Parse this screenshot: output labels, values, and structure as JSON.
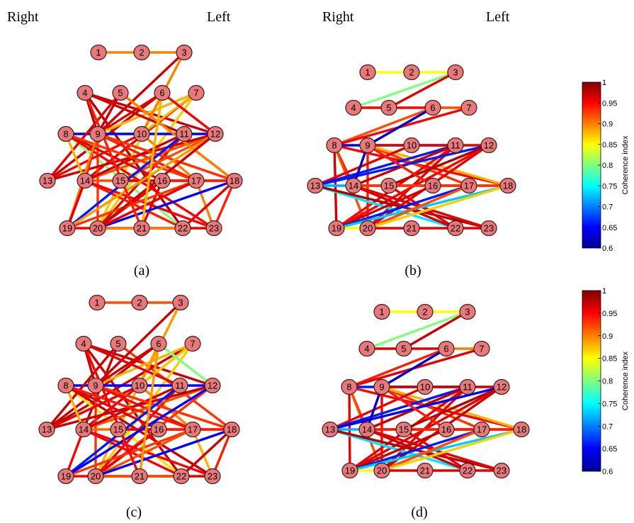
{
  "headers": {
    "left_panel": {
      "right": "Right",
      "left": "Left"
    },
    "right_panel": {
      "right": "Right",
      "left": "Left"
    }
  },
  "colorbar": {
    "label": "Coherence index",
    "min": 0.6,
    "max": 1,
    "ticks": [
      "1",
      "0.95",
      "0.9",
      "0.85",
      "0.8",
      "0.75",
      "0.7",
      "0.65",
      "0.6"
    ],
    "colormap": "jet"
  },
  "node_labels": [
    "1",
    "2",
    "3",
    "4",
    "5",
    "6",
    "7",
    "8",
    "9",
    "10",
    "11",
    "12",
    "13",
    "14",
    "15",
    "16",
    "17",
    "18",
    "19",
    "20",
    "21",
    "22",
    "23"
  ],
  "panels": [
    {
      "id": "a",
      "caption": "(a)",
      "edges": [
        [
          1,
          3,
          0.9
        ],
        [
          4,
          12,
          0.97
        ],
        [
          4,
          22,
          0.98
        ],
        [
          5,
          9,
          0.97
        ],
        [
          5,
          18,
          0.92
        ],
        [
          6,
          13,
          0.97
        ],
        [
          6,
          20,
          0.87
        ],
        [
          7,
          14,
          0.96
        ],
        [
          7,
          20,
          0.87
        ],
        [
          8,
          12,
          0.65
        ],
        [
          8,
          22,
          0.8
        ],
        [
          8,
          23,
          0.95
        ],
        [
          9,
          3,
          0.97
        ],
        [
          9,
          4,
          0.98
        ],
        [
          9,
          6,
          0.96
        ],
        [
          9,
          7,
          0.88
        ],
        [
          9,
          17,
          0.94
        ],
        [
          9,
          18,
          0.93
        ],
        [
          9,
          20,
          0.93
        ],
        [
          10,
          3,
          0.9
        ],
        [
          10,
          7,
          0.88
        ],
        [
          10,
          13,
          0.95
        ],
        [
          10,
          17,
          0.9
        ],
        [
          11,
          4,
          0.97
        ],
        [
          11,
          20,
          0.96
        ],
        [
          12,
          6,
          0.95
        ],
        [
          12,
          14,
          0.92
        ],
        [
          12,
          20,
          0.91
        ],
        [
          13,
          5,
          0.96
        ],
        [
          13,
          12,
          0.97
        ],
        [
          14,
          8,
          0.88
        ],
        [
          14,
          9,
          0.94
        ],
        [
          14,
          11,
          0.97
        ],
        [
          14,
          17,
          0.92
        ],
        [
          14,
          19,
          0.96
        ],
        [
          14,
          22,
          0.94
        ],
        [
          14,
          23,
          0.95
        ],
        [
          15,
          12,
          0.92
        ],
        [
          15,
          18,
          0.96
        ],
        [
          16,
          8,
          0.96
        ],
        [
          16,
          20,
          0.96
        ],
        [
          16,
          21,
          0.96
        ],
        [
          17,
          8,
          0.93
        ],
        [
          17,
          19,
          0.93
        ],
        [
          17,
          23,
          0.9
        ],
        [
          17,
          20,
          0.92
        ],
        [
          18,
          5,
          0.9
        ],
        [
          18,
          9,
          0.93
        ],
        [
          18,
          16,
          0.94
        ],
        [
          18,
          22,
          0.96
        ],
        [
          18,
          23,
          0.94
        ],
        [
          19,
          9,
          0.9
        ],
        [
          19,
          11,
          0.66
        ],
        [
          19,
          14,
          0.96
        ],
        [
          19,
          12,
          0.89
        ],
        [
          19,
          22,
          0.95
        ],
        [
          20,
          18,
          0.65
        ],
        [
          20,
          17,
          0.96
        ],
        [
          20,
          23,
          0.96
        ],
        [
          20,
          22,
          0.9
        ],
        [
          20,
          12,
          0.97
        ],
        [
          21,
          6,
          0.88
        ],
        [
          21,
          4,
          0.94
        ]
      ]
    },
    {
      "id": "b",
      "caption": "(b)",
      "edges": [
        [
          1,
          3,
          0.85
        ],
        [
          3,
          4,
          0.8
        ],
        [
          3,
          5,
          0.96
        ],
        [
          4,
          6,
          0.95
        ],
        [
          6,
          7,
          0.92
        ],
        [
          8,
          6,
          0.92
        ],
        [
          8,
          7,
          0.95
        ],
        [
          8,
          11,
          0.65
        ],
        [
          8,
          14,
          0.94
        ],
        [
          8,
          18,
          0.95
        ],
        [
          8,
          19,
          0.97
        ],
        [
          8,
          20,
          0.92
        ],
        [
          9,
          6,
          0.63
        ],
        [
          9,
          12,
          0.96
        ],
        [
          9,
          17,
          0.93
        ],
        [
          9,
          18,
          0.88
        ],
        [
          9,
          20,
          0.94
        ],
        [
          10,
          13,
          0.96
        ],
        [
          11,
          13,
          0.66
        ],
        [
          11,
          14,
          0.97
        ],
        [
          11,
          20,
          0.96
        ],
        [
          11,
          19,
          0.95
        ],
        [
          12,
          13,
          0.66
        ],
        [
          12,
          19,
          0.95
        ],
        [
          12,
          20,
          0.96
        ],
        [
          13,
          17,
          0.72
        ],
        [
          13,
          22,
          0.74
        ],
        [
          13,
          23,
          0.98
        ],
        [
          14,
          9,
          0.63
        ],
        [
          14,
          17,
          0.92
        ],
        [
          14,
          22,
          0.97
        ],
        [
          14,
          23,
          0.96
        ],
        [
          15,
          22,
          0.96
        ],
        [
          15,
          12,
          0.98
        ],
        [
          16,
          9,
          0.94
        ],
        [
          16,
          18,
          0.96
        ],
        [
          16,
          19,
          0.97
        ],
        [
          17,
          19,
          0.66
        ],
        [
          17,
          20,
          0.93
        ],
        [
          18,
          14,
          0.93
        ],
        [
          18,
          19,
          0.73
        ],
        [
          19,
          20,
          0.85
        ],
        [
          20,
          23,
          0.96
        ],
        [
          20,
          17,
          0.92
        ],
        [
          20,
          18,
          0.87
        ]
      ]
    },
    {
      "id": "c",
      "caption": "(c)",
      "edges": [
        [
          1,
          3,
          0.92
        ],
        [
          4,
          12,
          0.97
        ],
        [
          4,
          22,
          0.97
        ],
        [
          5,
          14,
          0.97
        ],
        [
          5,
          18,
          0.93
        ],
        [
          6,
          13,
          0.97
        ],
        [
          6,
          20,
          0.88
        ],
        [
          7,
          14,
          0.96
        ],
        [
          7,
          20,
          0.87
        ],
        [
          7,
          13,
          0.97
        ],
        [
          8,
          12,
          0.65
        ],
        [
          8,
          22,
          0.86
        ],
        [
          8,
          23,
          0.97
        ],
        [
          9,
          3,
          0.97
        ],
        [
          9,
          4,
          0.97
        ],
        [
          9,
          7,
          0.88
        ],
        [
          9,
          17,
          0.95
        ],
        [
          9,
          18,
          0.93
        ],
        [
          9,
          20,
          0.93
        ],
        [
          9,
          6,
          0.97
        ],
        [
          10,
          3,
          0.89
        ],
        [
          10,
          7,
          0.87
        ],
        [
          10,
          13,
          0.96
        ],
        [
          10,
          17,
          0.9
        ],
        [
          11,
          4,
          0.96
        ],
        [
          11,
          20,
          0.96
        ],
        [
          12,
          6,
          0.8
        ],
        [
          12,
          14,
          0.92
        ],
        [
          12,
          20,
          0.93
        ],
        [
          12,
          13,
          0.97
        ],
        [
          13,
          5,
          0.97
        ],
        [
          14,
          8,
          0.88
        ],
        [
          14,
          11,
          0.97
        ],
        [
          14,
          17,
          0.91
        ],
        [
          14,
          19,
          0.95
        ],
        [
          14,
          22,
          0.95
        ],
        [
          14,
          23,
          0.95
        ],
        [
          15,
          18,
          0.96
        ],
        [
          16,
          8,
          0.96
        ],
        [
          16,
          20,
          0.96
        ],
        [
          17,
          8,
          0.94
        ],
        [
          17,
          19,
          0.93
        ],
        [
          17,
          23,
          0.88
        ],
        [
          17,
          20,
          0.92
        ],
        [
          18,
          9,
          0.93
        ],
        [
          18,
          16,
          0.94
        ],
        [
          18,
          22,
          0.97
        ],
        [
          18,
          23,
          0.94
        ],
        [
          19,
          11,
          0.66
        ],
        [
          19,
          12,
          0.65
        ],
        [
          19,
          22,
          0.95
        ],
        [
          20,
          18,
          0.65
        ],
        [
          20,
          23,
          0.96
        ],
        [
          20,
          22,
          0.92
        ],
        [
          21,
          6,
          0.89
        ],
        [
          21,
          4,
          0.95
        ]
      ]
    },
    {
      "id": "d",
      "caption": "(d)",
      "edges": [
        [
          1,
          3,
          0.85
        ],
        [
          3,
          4,
          0.8
        ],
        [
          4,
          6,
          0.96
        ],
        [
          6,
          7,
          0.9
        ],
        [
          5,
          3,
          0.97
        ],
        [
          8,
          6,
          0.94
        ],
        [
          8,
          7,
          0.96
        ],
        [
          8,
          11,
          0.66
        ],
        [
          8,
          14,
          0.94
        ],
        [
          8,
          18,
          0.95
        ],
        [
          8,
          20,
          0.92
        ],
        [
          8,
          19,
          0.96
        ],
        [
          9,
          6,
          0.63
        ],
        [
          9,
          12,
          0.97
        ],
        [
          9,
          17,
          0.93
        ],
        [
          9,
          18,
          0.88
        ],
        [
          9,
          20,
          0.95
        ],
        [
          10,
          13,
          0.96
        ],
        [
          11,
          13,
          0.66
        ],
        [
          11,
          14,
          0.97
        ],
        [
          11,
          20,
          0.96
        ],
        [
          11,
          19,
          0.96
        ],
        [
          12,
          13,
          0.65
        ],
        [
          12,
          19,
          0.96
        ],
        [
          12,
          20,
          0.97
        ],
        [
          13,
          17,
          0.72
        ],
        [
          13,
          22,
          0.74
        ],
        [
          13,
          23,
          0.98
        ],
        [
          14,
          9,
          0.63
        ],
        [
          14,
          17,
          0.92
        ],
        [
          14,
          22,
          0.97
        ],
        [
          14,
          23,
          0.96
        ],
        [
          15,
          22,
          0.96
        ],
        [
          15,
          12,
          0.98
        ],
        [
          16,
          9,
          0.94
        ],
        [
          16,
          18,
          0.96
        ],
        [
          16,
          19,
          0.97
        ],
        [
          17,
          19,
          0.66
        ],
        [
          17,
          20,
          0.93
        ],
        [
          18,
          14,
          0.94
        ],
        [
          18,
          19,
          0.73
        ],
        [
          19,
          20,
          0.85
        ],
        [
          20,
          23,
          0.96
        ],
        [
          20,
          17,
          0.92
        ],
        [
          20,
          18,
          0.87
        ]
      ]
    }
  ]
}
